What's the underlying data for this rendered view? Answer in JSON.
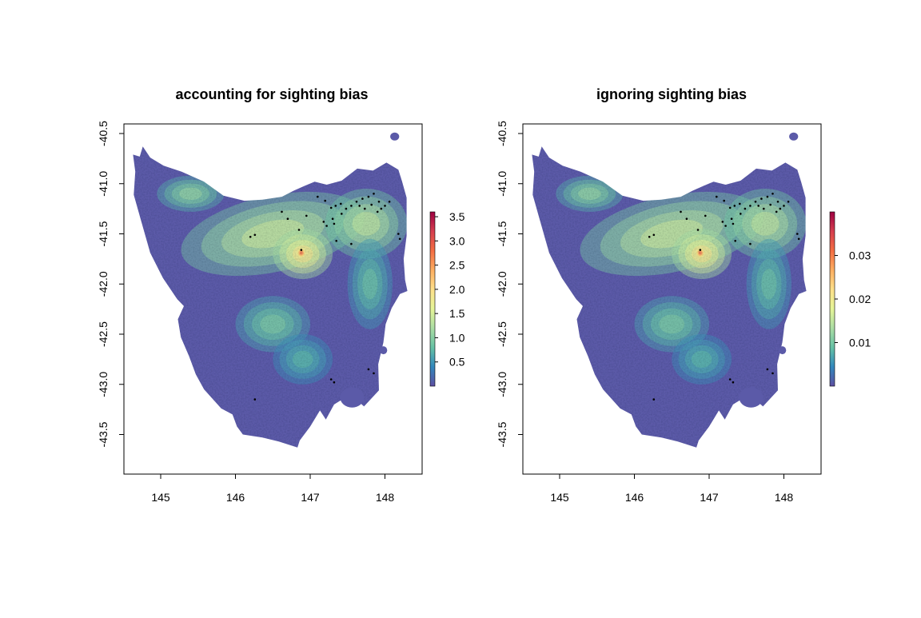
{
  "colors": {
    "scale": [
      "#5e4fa2",
      "#3288bd",
      "#66c2a5",
      "#abdda4",
      "#e6f598",
      "#fee08b",
      "#fdae61",
      "#f46d43",
      "#d53e4f",
      "#9e0142"
    ],
    "land_base": "#5b5aa8",
    "points": "#000000"
  },
  "panels": [
    {
      "title": "accounting for sighting bias",
      "y_ticks": [
        "-40.5",
        "-41.0",
        "-41.5",
        "-42.0",
        "-42.5",
        "-43.0",
        "-43.5"
      ],
      "x_ticks": [
        "145",
        "146",
        "147",
        "148"
      ],
      "colorbar_ticks": [
        "3.5",
        "3.0",
        "2.5",
        "2.0",
        "1.5",
        "1.0",
        "0.5"
      ],
      "colorbar_range": [
        0,
        3.6
      ]
    },
    {
      "title": "ignoring sighting bias",
      "y_ticks": [
        "-40.5",
        "-41.0",
        "-41.5",
        "-42.0",
        "-42.5",
        "-43.0",
        "-43.5"
      ],
      "x_ticks": [
        "145",
        "146",
        "147",
        "148"
      ],
      "colorbar_ticks": [
        "0.03",
        "0.02",
        "0.01"
      ],
      "colorbar_range": [
        0,
        0.04
      ]
    }
  ],
  "map_data": {
    "lon_range": [
      144.5,
      148.5
    ],
    "lat_range": [
      -43.9,
      -40.4
    ],
    "coast": [
      [
        144.63,
        -40.71
      ],
      [
        144.72,
        -40.73
      ],
      [
        144.76,
        -40.63
      ],
      [
        144.86,
        -40.74
      ],
      [
        145.04,
        -40.82
      ],
      [
        145.28,
        -40.88
      ],
      [
        145.58,
        -40.98
      ],
      [
        145.84,
        -41.12
      ],
      [
        146.12,
        -41.17
      ],
      [
        146.36,
        -41.16
      ],
      [
        146.62,
        -41.13
      ],
      [
        146.78,
        -41.07
      ],
      [
        146.93,
        -41.02
      ],
      [
        147.06,
        -40.98
      ],
      [
        147.22,
        -41.01
      ],
      [
        147.42,
        -40.97
      ],
      [
        147.63,
        -40.85
      ],
      [
        147.84,
        -40.87
      ],
      [
        148.02,
        -40.79
      ],
      [
        148.18,
        -40.86
      ],
      [
        148.23,
        -40.98
      ],
      [
        148.29,
        -41.14
      ],
      [
        148.29,
        -41.36
      ],
      [
        148.29,
        -41.52
      ],
      [
        148.25,
        -41.75
      ],
      [
        148.27,
        -41.96
      ],
      [
        148.3,
        -42.07
      ],
      [
        148.2,
        -42.1
      ],
      [
        148.09,
        -42.24
      ],
      [
        148.01,
        -42.4
      ],
      [
        147.98,
        -42.58
      ],
      [
        147.91,
        -42.8
      ],
      [
        147.92,
        -43.06
      ],
      [
        147.72,
        -43.22
      ],
      [
        147.54,
        -43.1
      ],
      [
        147.32,
        -43.2
      ],
      [
        147.21,
        -43.35
      ],
      [
        147.13,
        -43.26
      ],
      [
        147.0,
        -43.42
      ],
      [
        146.86,
        -43.56
      ],
      [
        146.83,
        -43.63
      ],
      [
        146.58,
        -43.57
      ],
      [
        146.36,
        -43.53
      ],
      [
        146.1,
        -43.5
      ],
      [
        146.02,
        -43.42
      ],
      [
        145.96,
        -43.3
      ],
      [
        145.81,
        -43.24
      ],
      [
        145.58,
        -43.05
      ],
      [
        145.47,
        -42.9
      ],
      [
        145.38,
        -42.72
      ],
      [
        145.27,
        -42.53
      ],
      [
        145.23,
        -42.35
      ],
      [
        145.31,
        -42.22
      ],
      [
        145.22,
        -42.15
      ],
      [
        145.03,
        -41.94
      ],
      [
        144.86,
        -41.69
      ],
      [
        144.73,
        -41.35
      ],
      [
        144.64,
        -41.11
      ],
      [
        144.66,
        -40.88
      ]
    ],
    "features": [
      {
        "name": "northern-arc",
        "lon": 146.5,
        "lat": -41.5,
        "rx": 1.25,
        "ry": 0.38,
        "level": 0.42,
        "rotate": -12
      },
      {
        "name": "north-east-highlands",
        "lon": 147.75,
        "lat": -41.4,
        "rx": 0.55,
        "ry": 0.35,
        "level": 0.4,
        "rotate": 0
      },
      {
        "name": "north-west-zone",
        "lon": 145.4,
        "lat": -41.1,
        "rx": 0.45,
        "ry": 0.18,
        "level": 0.32,
        "rotate": 0
      },
      {
        "name": "midlands-core",
        "lon": 146.9,
        "lat": -41.7,
        "rx": 0.4,
        "ry": 0.25,
        "level": 0.55,
        "rotate": 0
      },
      {
        "name": "central-plateau",
        "lon": 146.5,
        "lat": -42.4,
        "rx": 0.5,
        "ry": 0.28,
        "level": 0.28,
        "rotate": 0
      },
      {
        "name": "east-coast",
        "lon": 147.8,
        "lat": -42.0,
        "rx": 0.3,
        "ry": 0.45,
        "level": 0.25,
        "rotate": 0
      },
      {
        "name": "derwent-valley",
        "lon": 146.9,
        "lat": -42.75,
        "rx": 0.4,
        "ry": 0.25,
        "level": 0.22,
        "rotate": 0
      },
      {
        "name": "hotspot",
        "lon": 146.88,
        "lat": -41.69,
        "rx": 0.06,
        "ry": 0.05,
        "level": 0.85,
        "rotate": 0
      }
    ],
    "islands": [
      {
        "lon": 148.13,
        "lat": -40.53,
        "rx": 0.06,
        "ry": 0.04
      },
      {
        "lon": 147.56,
        "lat": -43.13,
        "rx": 0.16,
        "ry": 0.1
      },
      {
        "lon": 147.98,
        "lat": -42.66,
        "rx": 0.05,
        "ry": 0.04
      }
    ],
    "sightings": [
      [
        147.2,
        -41.17
      ],
      [
        147.28,
        -41.24
      ],
      [
        147.34,
        -41.22
      ],
      [
        147.41,
        -41.2
      ],
      [
        147.48,
        -41.25
      ],
      [
        147.55,
        -41.22
      ],
      [
        147.62,
        -41.18
      ],
      [
        147.7,
        -41.15
      ],
      [
        147.78,
        -41.13
      ],
      [
        147.85,
        -41.1
      ],
      [
        147.92,
        -41.18
      ],
      [
        148.0,
        -41.22
      ],
      [
        148.06,
        -41.18
      ],
      [
        147.66,
        -41.22
      ],
      [
        147.73,
        -41.25
      ],
      [
        147.82,
        -41.21
      ],
      [
        147.18,
        -41.38
      ],
      [
        147.22,
        -41.42
      ],
      [
        147.3,
        -41.35
      ],
      [
        147.42,
        -41.3
      ],
      [
        147.9,
        -41.28
      ],
      [
        147.95,
        -41.25
      ],
      [
        147.32,
        -41.4
      ],
      [
        146.62,
        -41.28
      ],
      [
        146.95,
        -41.32
      ],
      [
        146.2,
        -41.53
      ],
      [
        146.26,
        -41.51
      ],
      [
        146.85,
        -41.46
      ],
      [
        146.88,
        -41.66
      ],
      [
        147.35,
        -41.57
      ],
      [
        148.18,
        -41.5
      ],
      [
        148.2,
        -41.55
      ],
      [
        147.78,
        -42.85
      ],
      [
        147.85,
        -42.89
      ],
      [
        147.28,
        -42.95
      ],
      [
        147.32,
        -42.98
      ],
      [
        146.26,
        -43.15
      ],
      [
        147.55,
        -41.6
      ],
      [
        147.1,
        -41.13
      ],
      [
        146.7,
        -41.35
      ]
    ]
  }
}
